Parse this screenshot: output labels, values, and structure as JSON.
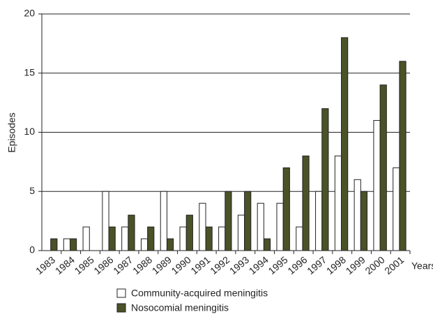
{
  "chart_data": {
    "type": "bar",
    "xlabel": "Years",
    "ylabel": "Episodes",
    "categories": [
      "1983",
      "1984",
      "1985",
      "1986",
      "1987",
      "1988",
      "1989",
      "1990",
      "1991",
      "1992",
      "1993",
      "1994",
      "1995",
      "1996",
      "1997",
      "1998",
      "1999",
      "2000",
      "2001"
    ],
    "series": [
      {
        "name": "Community-acquired meningitis",
        "color": "#ffffff",
        "values": [
          0,
          1,
          2,
          5,
          2,
          1,
          5,
          2,
          4,
          2,
          3,
          4,
          4,
          2,
          5,
          8,
          6,
          11,
          7
        ]
      },
      {
        "name": "Nosocomial meningitis",
        "color": "#4a5228",
        "values": [
          1,
          1,
          0,
          2,
          3,
          2,
          1,
          3,
          2,
          5,
          5,
          1,
          7,
          8,
          12,
          18,
          5,
          14,
          16
        ]
      }
    ],
    "ylim": [
      0,
      20
    ],
    "yticks": [
      0,
      5,
      10,
      15,
      20
    ],
    "grid": true
  }
}
